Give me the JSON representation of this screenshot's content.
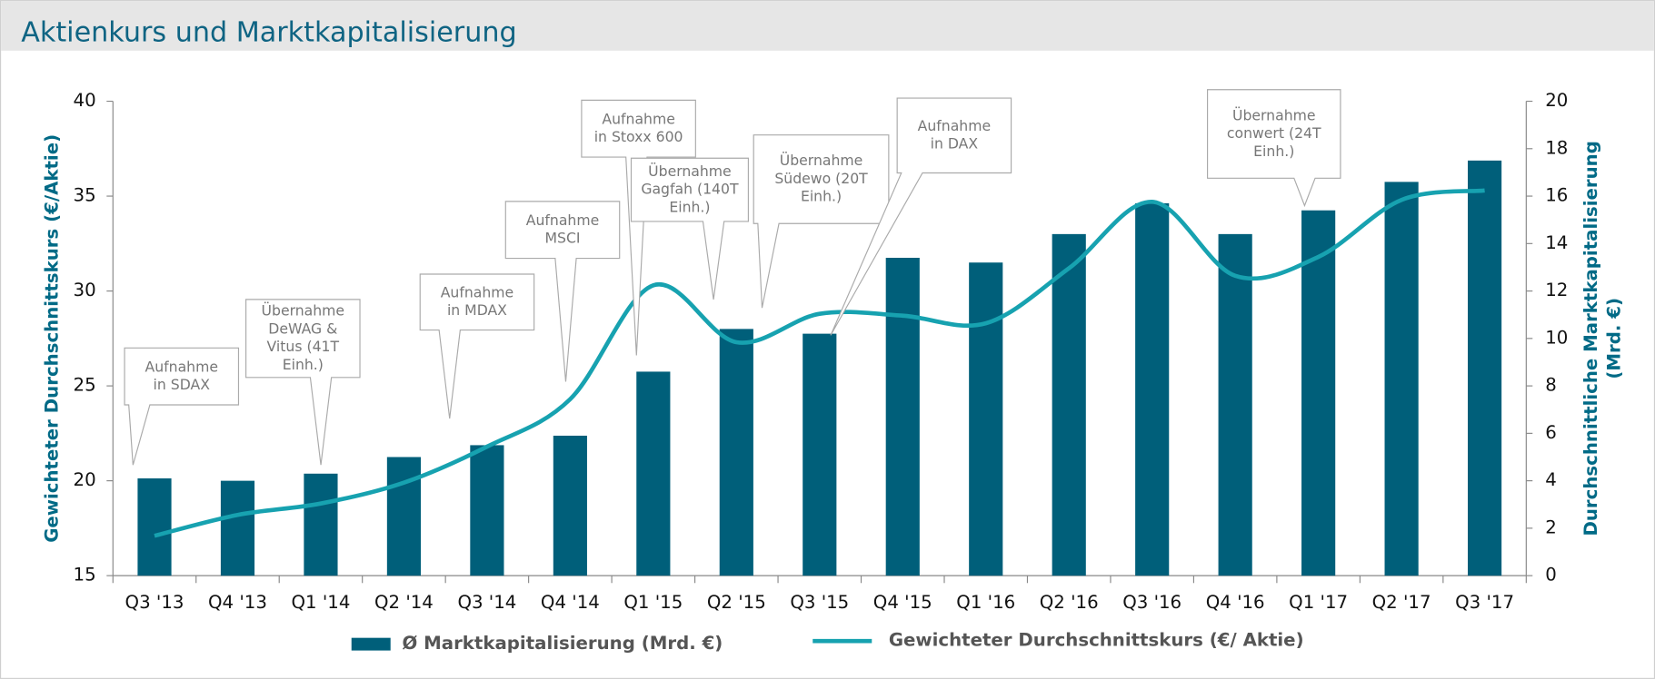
{
  "chart_data": {
    "type": "bar",
    "title": "Aktienkurs und Marktkapitalisierung",
    "y_label": "Gewichteter Durchschnittskurs (€/Aktie)",
    "y2_label": [
      "Durchschnittliche Marktkapitalisierung",
      "(Mrd. €)"
    ],
    "categories": [
      "Q3 '13",
      "Q4 '13",
      "Q1 '14",
      "Q2 '14",
      "Q3 '14",
      "Q4 '14",
      "Q1 '15",
      "Q2 '15",
      "Q3 '15",
      "Q4  '15",
      "Q1 '16",
      "Q2 '16",
      "Q3 '16",
      "Q4 '16",
      "Q1 '17",
      "Q2 '17",
      "Q3 '17"
    ],
    "series": [
      {
        "name": "Ø Marktkapitalisierung (Mrd. €)",
        "type": "bar",
        "axis": "y2",
        "color": "#005f7a",
        "values": [
          4.1,
          4.0,
          4.3,
          5.0,
          5.5,
          5.9,
          8.6,
          10.4,
          10.2,
          13.4,
          13.2,
          14.4,
          15.7,
          14.4,
          15.4,
          16.6,
          17.5
        ]
      },
      {
        "name": "Gewichteter Durchschnittskurs (€/ Aktie)",
        "type": "line",
        "axis": "y",
        "color": "#17a2b0",
        "values": [
          17.1,
          18.2,
          18.8,
          19.9,
          21.8,
          24.3,
          30.3,
          27.3,
          28.8,
          28.7,
          28.3,
          31.2,
          34.7,
          30.8,
          31.8,
          34.8,
          35.3
        ]
      }
    ],
    "ylim": [
      15,
      40
    ],
    "yticks": [
      15,
      20,
      25,
      30,
      35,
      40
    ],
    "y2lim": [
      0,
      20
    ],
    "y2ticks": [
      0,
      2,
      4,
      6,
      8,
      10,
      12,
      14,
      16,
      18,
      20
    ],
    "legend": "bottom",
    "annotations": [
      {
        "text": [
          "Aufnahme",
          "in SDAX"
        ]
      },
      {
        "text": [
          "Übernahme",
          "DeWAG &",
          "Vitus (41T",
          "Einh.)"
        ]
      },
      {
        "text": [
          "Aufnahme",
          "in MDAX"
        ]
      },
      {
        "text": [
          "Aufnahme",
          "MSCI"
        ]
      },
      {
        "text": [
          "Aufnahme",
          "in Stoxx 600"
        ]
      },
      {
        "text": [
          "Übernahme",
          "Gagfah (140T",
          "Einh.)"
        ]
      },
      {
        "text": [
          "Übernahme",
          "Südewo (20T",
          "Einh.)"
        ]
      },
      {
        "text": [
          "Aufnahme",
          "in DAX"
        ]
      },
      {
        "text": [
          "Übernahme",
          "conwert  (24T",
          "Einh.)"
        ]
      }
    ]
  }
}
